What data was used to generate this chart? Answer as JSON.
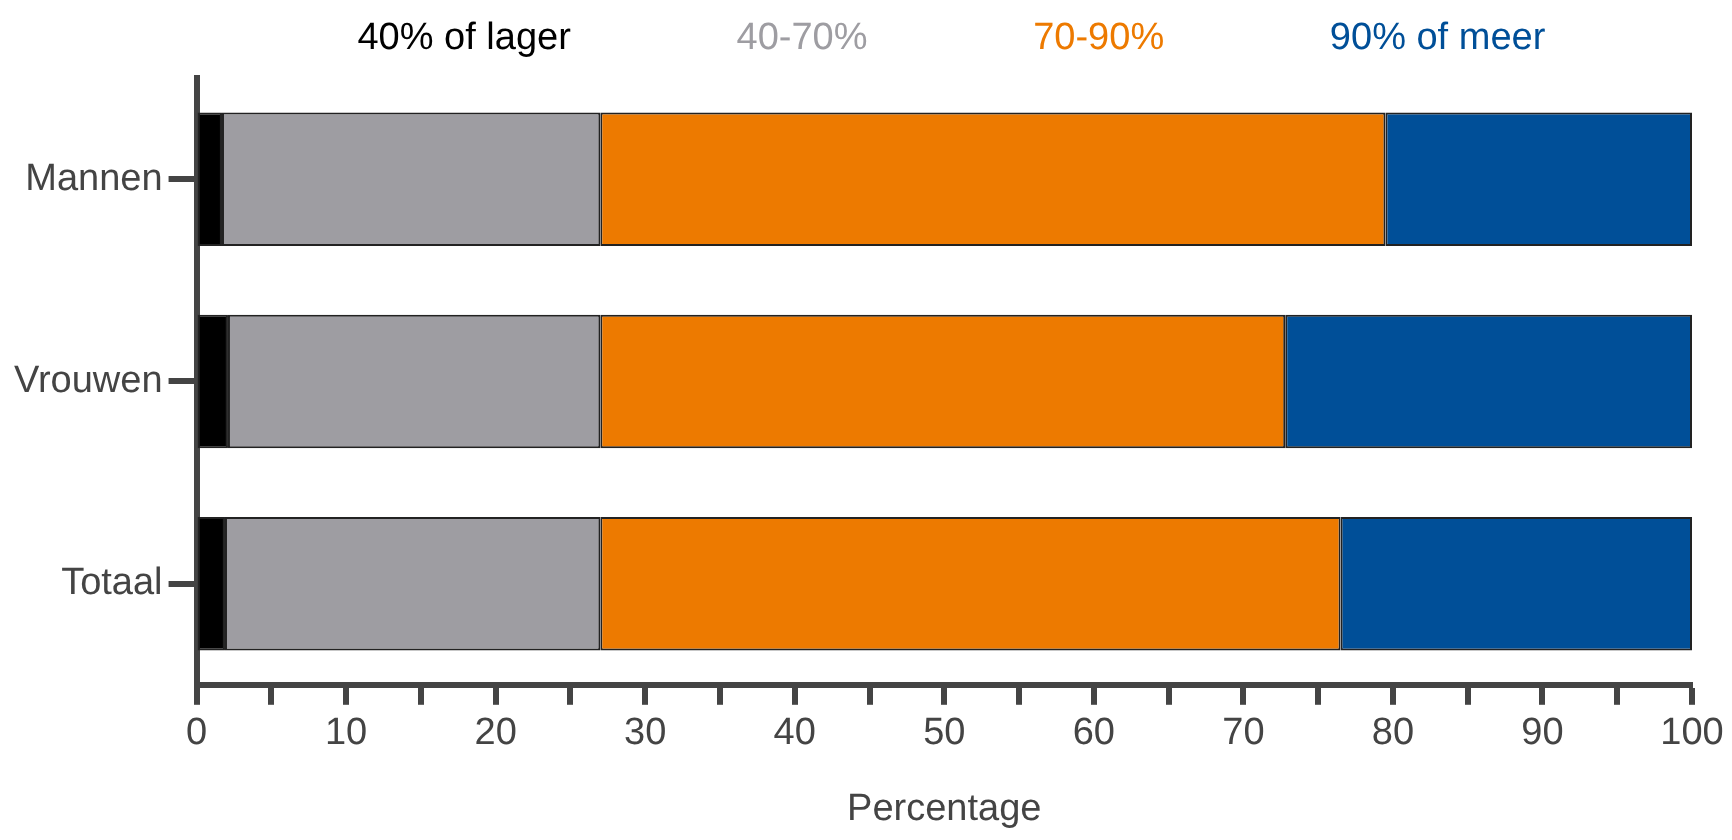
{
  "chart_data": {
    "type": "bar",
    "orientation": "horizontal",
    "stacked": true,
    "xlabel": "Percentage",
    "categories": [
      "Mannen",
      "Vrouwen",
      "Totaal"
    ],
    "series": [
      {
        "name": "40% of lager",
        "color": "#000000",
        "values": [
          1.7,
          2.1,
          1.9
        ]
      },
      {
        "name": "40-70%",
        "color": "#9e9da2",
        "values": [
          25.3,
          24.9,
          25.1
        ]
      },
      {
        "name": "70-90%",
        "color": "#ed7a00",
        "values": [
          52.5,
          45.8,
          49.5
        ]
      },
      {
        "name": "90% of meer",
        "color": "#004f98",
        "values": [
          20.5,
          27.2,
          23.5
        ]
      }
    ],
    "xlim": [
      0,
      100
    ],
    "xticks": [
      0,
      {
        "value": 5,
        "label": null
      },
      10,
      {
        "value": 15,
        "label": null
      },
      20,
      {
        "value": 25,
        "label": null
      },
      30,
      {
        "value": 35,
        "label": null
      },
      40,
      {
        "value": 45,
        "label": null
      },
      50,
      {
        "value": 55,
        "label": null
      },
      60,
      {
        "value": 65,
        "label": null
      },
      70,
      {
        "value": 75,
        "label": null
      },
      80,
      {
        "value": 85,
        "label": null
      },
      90,
      {
        "value": 95,
        "label": null
      },
      100
    ],
    "grid": false,
    "legend": "top"
  }
}
